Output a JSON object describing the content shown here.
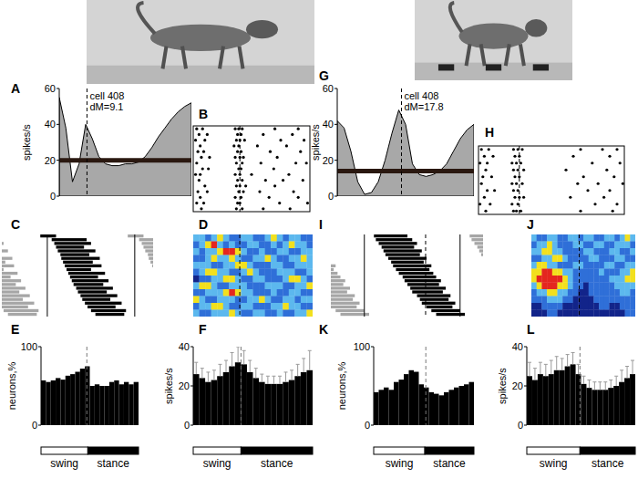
{
  "chart_data": [
    {
      "type": "area",
      "title": "A",
      "y_label": "spikes/s",
      "x": [
        0,
        0.05,
        0.1,
        0.15,
        0.2,
        0.25,
        0.3,
        0.35,
        0.4,
        0.45,
        0.5,
        0.55,
        0.6,
        0.65,
        0.7,
        0.75,
        0.8,
        0.85,
        0.9,
        0.95,
        1
      ],
      "values": [
        55,
        38,
        8,
        18,
        40,
        32,
        22,
        18,
        17,
        17,
        18,
        18,
        19,
        22,
        27,
        33,
        38,
        43,
        47,
        50,
        52
      ],
      "xlim": [
        0,
        1
      ],
      "ylim": [
        0,
        60
      ],
      "yticks": [
        0,
        20,
        40,
        60
      ],
      "tick_labels": "y",
      "hline": 20,
      "vline": 0.21,
      "annotations": [
        "cell 408",
        "dM=9.1"
      ],
      "color": "#a8a8a8"
    },
    {
      "type": "raster",
      "title": "B",
      "xlim": [
        0,
        1
      ],
      "tick_labels": false,
      "vline": 0.4,
      "trials": [
        [
          0.03,
          0.08,
          0.36,
          0.39,
          0.42,
          0.7,
          0.9
        ],
        [
          0.05,
          0.12,
          0.38,
          0.41,
          0.6,
          0.85
        ],
        [
          0.02,
          0.1,
          0.37,
          0.4,
          0.44,
          0.75,
          0.95
        ],
        [
          0.06,
          0.35,
          0.39,
          0.55,
          0.8
        ],
        [
          0.04,
          0.09,
          0.38,
          0.41,
          0.66,
          0.92
        ],
        [
          0.07,
          0.14,
          0.36,
          0.4,
          0.43,
          0.72
        ],
        [
          0.03,
          0.37,
          0.42,
          0.58,
          0.88,
          0.97
        ],
        [
          0.08,
          0.13,
          0.39,
          0.41,
          0.69
        ],
        [
          0.02,
          0.06,
          0.36,
          0.4,
          0.5,
          0.82
        ],
        [
          0.05,
          0.38,
          0.42,
          0.62,
          0.77,
          0.94
        ],
        [
          0.1,
          0.37,
          0.4,
          0.45,
          0.7
        ],
        [
          0.04,
          0.12,
          0.39,
          0.43,
          0.57,
          0.86
        ],
        [
          0.06,
          0.36,
          0.41,
          0.65,
          0.9
        ],
        [
          0.03,
          0.09,
          0.38,
          0.4,
          0.74,
          0.98
        ],
        [
          0.07,
          0.37,
          0.42,
          0.6,
          0.83
        ]
      ]
    },
    {
      "type": "segments",
      "title": "C",
      "xlim": [
        -0.52,
        1.21
      ],
      "tick_labels": false,
      "cycle": [
        0,
        1
      ],
      "rows": [
        [
          -0.08,
          0.1
        ],
        [
          0.05,
          0.45
        ],
        [
          0.08,
          0.5
        ],
        [
          0.1,
          0.42
        ],
        [
          0.12,
          0.55
        ],
        [
          0.15,
          0.48
        ],
        [
          0.16,
          0.6
        ],
        [
          0.18,
          0.52
        ],
        [
          0.2,
          0.62
        ],
        [
          0.22,
          0.5
        ],
        [
          0.24,
          0.66
        ],
        [
          0.26,
          0.58
        ],
        [
          0.28,
          0.7
        ],
        [
          0.3,
          0.64
        ],
        [
          0.33,
          0.75
        ],
        [
          0.35,
          0.68
        ],
        [
          0.38,
          0.8
        ],
        [
          0.4,
          0.72
        ],
        [
          0.43,
          0.85
        ],
        [
          0.46,
          0.78
        ],
        [
          0.5,
          0.9
        ],
        [
          0.55,
          0.88
        ]
      ]
    },
    {
      "type": "heatmap",
      "title": "D",
      "xlim": [
        0,
        1
      ],
      "tick_labels": false,
      "vline": 0.39,
      "zlim": [
        0,
        4
      ],
      "colors": [
        "#12248a",
        "#2f6fd8",
        "#5cb8ee",
        "#f2e01e",
        "#e4261f"
      ],
      "cells": [
        [
          2,
          2,
          1,
          2,
          3,
          2,
          1,
          1,
          2,
          2,
          1,
          1,
          2,
          3,
          2,
          1,
          2,
          2,
          1,
          1
        ],
        [
          1,
          2,
          3,
          4,
          2,
          1,
          2,
          1,
          1,
          2,
          2,
          1,
          1,
          2,
          1,
          2,
          3,
          2,
          2,
          1
        ],
        [
          2,
          1,
          2,
          2,
          3,
          4,
          4,
          3,
          2,
          1,
          1,
          2,
          1,
          1,
          2,
          2,
          1,
          1,
          2,
          2
        ],
        [
          1,
          1,
          2,
          3,
          2,
          2,
          3,
          2,
          1,
          1,
          2,
          2,
          3,
          2,
          1,
          1,
          2,
          2,
          3,
          2
        ],
        [
          2,
          2,
          2,
          1,
          1,
          2,
          2,
          3,
          3,
          2,
          1,
          1,
          1,
          2,
          2,
          1,
          1,
          2,
          2,
          2
        ],
        [
          1,
          2,
          3,
          3,
          2,
          2,
          1,
          1,
          2,
          3,
          2,
          1,
          1,
          1,
          2,
          2,
          2,
          1,
          1,
          2
        ],
        [
          0,
          1,
          1,
          2,
          2,
          3,
          3,
          2,
          1,
          1,
          2,
          2,
          1,
          1,
          1,
          2,
          3,
          3,
          2,
          1
        ],
        [
          2,
          3,
          3,
          2,
          1,
          1,
          2,
          2,
          2,
          1,
          1,
          1,
          2,
          2,
          2,
          1,
          1,
          2,
          2,
          3
        ],
        [
          1,
          1,
          2,
          2,
          2,
          3,
          4,
          3,
          2,
          2,
          1,
          1,
          1,
          2,
          1,
          1,
          2,
          2,
          1,
          1
        ],
        [
          3,
          2,
          1,
          1,
          2,
          2,
          2,
          1,
          1,
          2,
          2,
          3,
          2,
          1,
          1,
          2,
          2,
          1,
          2,
          2
        ],
        [
          1,
          2,
          2,
          3,
          3,
          2,
          1,
          1,
          2,
          2,
          1,
          1,
          1,
          2,
          2,
          3,
          2,
          2,
          1,
          1
        ],
        [
          2,
          1,
          1,
          2,
          2,
          2,
          3,
          2,
          1,
          1,
          2,
          2,
          1,
          1,
          2,
          1,
          1,
          2,
          2,
          3
        ]
      ]
    },
    {
      "type": "bar",
      "title": "E",
      "y_label": "neurons,%",
      "xlim": [
        0,
        1
      ],
      "ylim": [
        0,
        100
      ],
      "yticks": [
        0,
        100
      ],
      "tick_labels": "y",
      "color": "#000000",
      "vline": 0.47,
      "values": [
        57,
        55,
        57,
        60,
        58,
        63,
        65,
        68,
        72,
        75,
        50,
        52,
        50,
        50,
        55,
        57,
        52,
        55,
        52,
        55
      ],
      "phase_bar": {
        "labels": [
          "swing",
          "stance"
        ],
        "boundary": 0.48
      }
    },
    {
      "type": "bar",
      "title": "F",
      "y_label": "spikes/s",
      "xlim": [
        0,
        1
      ],
      "ylim": [
        0,
        40
      ],
      "yticks": [
        0,
        20,
        40
      ],
      "tick_labels": "y",
      "color": "#000000",
      "vline": 0.4,
      "values": [
        26,
        24,
        22,
        23,
        25,
        27,
        30,
        32,
        31,
        27,
        24,
        22,
        21,
        21,
        21,
        22,
        23,
        25,
        27,
        28
      ],
      "errors": [
        6,
        5,
        5,
        5,
        6,
        6,
        7,
        8,
        7,
        6,
        5,
        4,
        4,
        4,
        4,
        5,
        5,
        6,
        7,
        10
      ],
      "phase_bar": {
        "labels": [
          "swing",
          "stance"
        ],
        "boundary": 0.4
      }
    },
    {
      "type": "area",
      "title": "G",
      "y_label": "spikes/s",
      "x": [
        0,
        0.05,
        0.1,
        0.15,
        0.2,
        0.25,
        0.3,
        0.35,
        0.4,
        0.45,
        0.5,
        0.55,
        0.6,
        0.65,
        0.7,
        0.75,
        0.8,
        0.85,
        0.9,
        0.95,
        1
      ],
      "values": [
        42,
        38,
        25,
        8,
        1,
        2,
        8,
        20,
        35,
        48,
        40,
        18,
        12,
        11,
        12,
        14,
        18,
        25,
        32,
        37,
        40
      ],
      "xlim": [
        0,
        1
      ],
      "ylim": [
        0,
        60
      ],
      "yticks": [
        0,
        20,
        40,
        60
      ],
      "tick_labels": "y",
      "hline": 14,
      "vline": 0.47,
      "annotations": [
        "cell 408",
        "dM=17.8"
      ],
      "color": "#a8a8a8"
    },
    {
      "type": "raster",
      "title": "H",
      "xlim": [
        0,
        1
      ],
      "tick_labels": false,
      "vline": 0.28,
      "trials": [
        [
          0.02,
          0.07,
          0.24,
          0.27,
          0.3,
          0.7,
          0.85,
          0.95
        ],
        [
          0.04,
          0.1,
          0.25,
          0.28,
          0.65,
          0.9
        ],
        [
          0.01,
          0.06,
          0.23,
          0.26,
          0.29,
          0.78,
          0.97
        ],
        [
          0.05,
          0.24,
          0.27,
          0.31,
          0.6,
          0.88
        ],
        [
          0.03,
          0.09,
          0.25,
          0.28,
          0.72,
          0.93
        ],
        [
          0.02,
          0.23,
          0.26,
          0.3,
          0.68,
          0.82,
          0.99
        ],
        [
          0.06,
          0.11,
          0.24,
          0.27,
          0.75,
          0.9
        ],
        [
          0.04,
          0.25,
          0.28,
          0.31,
          0.63,
          0.86
        ],
        [
          0.01,
          0.08,
          0.23,
          0.27,
          0.8,
          0.95
        ],
        [
          0.05,
          0.24,
          0.26,
          0.29,
          0.7,
          0.92
        ]
      ]
    },
    {
      "type": "segments",
      "title": "I",
      "xlim": [
        -0.35,
        1.24
      ],
      "tick_labels": false,
      "cycle": [
        0,
        1
      ],
      "vline": 0.64,
      "rows": [
        [
          0.1,
          0.45
        ],
        [
          0.12,
          0.5
        ],
        [
          0.15,
          0.55
        ],
        [
          0.18,
          0.52
        ],
        [
          0.2,
          0.6
        ],
        [
          0.22,
          0.58
        ],
        [
          0.25,
          0.65
        ],
        [
          0.28,
          0.62
        ],
        [
          0.3,
          0.7
        ],
        [
          0.33,
          0.68
        ],
        [
          0.36,
          0.72
        ],
        [
          0.4,
          0.75
        ],
        [
          0.42,
          0.8
        ],
        [
          0.45,
          0.78
        ],
        [
          0.48,
          0.85
        ],
        [
          0.5,
          0.82
        ],
        [
          0.55,
          0.9
        ],
        [
          0.58,
          0.88
        ],
        [
          0.6,
          0.95
        ],
        [
          0.65,
          0.92
        ],
        [
          0.7,
          1.0
        ],
        [
          0.75,
          1.05
        ]
      ]
    },
    {
      "type": "heatmap",
      "title": "J",
      "xlim": [
        0,
        1
      ],
      "tick_labels": false,
      "vline": 0.46,
      "zlim": [
        0,
        4
      ],
      "colors": [
        "#12248a",
        "#2f6fd8",
        "#5cb8ee",
        "#f2e01e",
        "#e4261f"
      ],
      "cells": [
        [
          2,
          1,
          1,
          2,
          2,
          1,
          1,
          2,
          2,
          1,
          2,
          2,
          1,
          1,
          2,
          2,
          1,
          2,
          3,
          2
        ],
        [
          1,
          2,
          2,
          3,
          2,
          1,
          1,
          1,
          2,
          2,
          1,
          1,
          2,
          2,
          1,
          1,
          2,
          2,
          2,
          1
        ],
        [
          2,
          2,
          3,
          3,
          2,
          2,
          1,
          1,
          1,
          1,
          2,
          2,
          1,
          1,
          1,
          2,
          2,
          1,
          1,
          2
        ],
        [
          1,
          1,
          2,
          2,
          3,
          3,
          2,
          1,
          1,
          1,
          1,
          2,
          2,
          1,
          1,
          1,
          2,
          2,
          1,
          1
        ],
        [
          2,
          3,
          3,
          2,
          2,
          1,
          1,
          1,
          2,
          2,
          1,
          1,
          1,
          1,
          2,
          2,
          1,
          1,
          2,
          2
        ],
        [
          3,
          3,
          4,
          4,
          3,
          3,
          2,
          2,
          1,
          1,
          1,
          1,
          1,
          2,
          1,
          1,
          1,
          2,
          2,
          3
        ],
        [
          3,
          4,
          4,
          4,
          4,
          4,
          3,
          2,
          1,
          1,
          1,
          1,
          1,
          1,
          1,
          2,
          2,
          2,
          3,
          3
        ],
        [
          2,
          3,
          4,
          4,
          4,
          3,
          3,
          2,
          1,
          1,
          0,
          1,
          1,
          1,
          1,
          1,
          2,
          2,
          2,
          2
        ],
        [
          1,
          2,
          2,
          3,
          3,
          2,
          2,
          1,
          1,
          0,
          0,
          1,
          1,
          1,
          1,
          1,
          1,
          2,
          2,
          1
        ],
        [
          1,
          1,
          1,
          2,
          2,
          2,
          1,
          1,
          0,
          0,
          0,
          0,
          1,
          1,
          1,
          1,
          1,
          1,
          1,
          1
        ],
        [
          0,
          0,
          1,
          1,
          1,
          1,
          0,
          0,
          0,
          0,
          0,
          0,
          0,
          1,
          1,
          0,
          0,
          1,
          1,
          1
        ],
        [
          0,
          0,
          0,
          1,
          1,
          0,
          0,
          0,
          0,
          0,
          0,
          0,
          0,
          0,
          0,
          0,
          0,
          0,
          1,
          1
        ]
      ]
    },
    {
      "type": "bar",
      "title": "K",
      "y_label": "neurons,%",
      "xlim": [
        0,
        1
      ],
      "ylim": [
        0,
        100
      ],
      "yticks": [
        0,
        100
      ],
      "tick_labels": "y",
      "color": "#000000",
      "vline": 0.52,
      "values": [
        42,
        45,
        48,
        45,
        55,
        58,
        65,
        70,
        68,
        52,
        48,
        42,
        40,
        38,
        42,
        45,
        48,
        50,
        52,
        55
      ],
      "phase_bar": {
        "labels": [
          "swing",
          "stance"
        ],
        "boundary": 0.51
      }
    },
    {
      "type": "bar",
      "title": "L",
      "y_label": "spikes/s",
      "xlim": [
        0,
        1
      ],
      "ylim": [
        0,
        40
      ],
      "yticks": [
        0,
        20,
        40
      ],
      "tick_labels": "y",
      "color": "#000000",
      "vline": 0.49,
      "values": [
        25,
        23,
        26,
        25,
        26,
        28,
        28,
        30,
        31,
        26,
        21,
        19,
        18,
        18,
        18,
        19,
        20,
        22,
        24,
        26
      ],
      "errors": [
        7,
        6,
        6,
        6,
        7,
        7,
        6,
        6,
        6,
        5,
        4,
        4,
        4,
        4,
        4,
        4,
        5,
        6,
        6,
        7
      ],
      "phase_bar": {
        "labels": [
          "swing",
          "stance"
        ],
        "boundary": 0.49
      }
    }
  ]
}
